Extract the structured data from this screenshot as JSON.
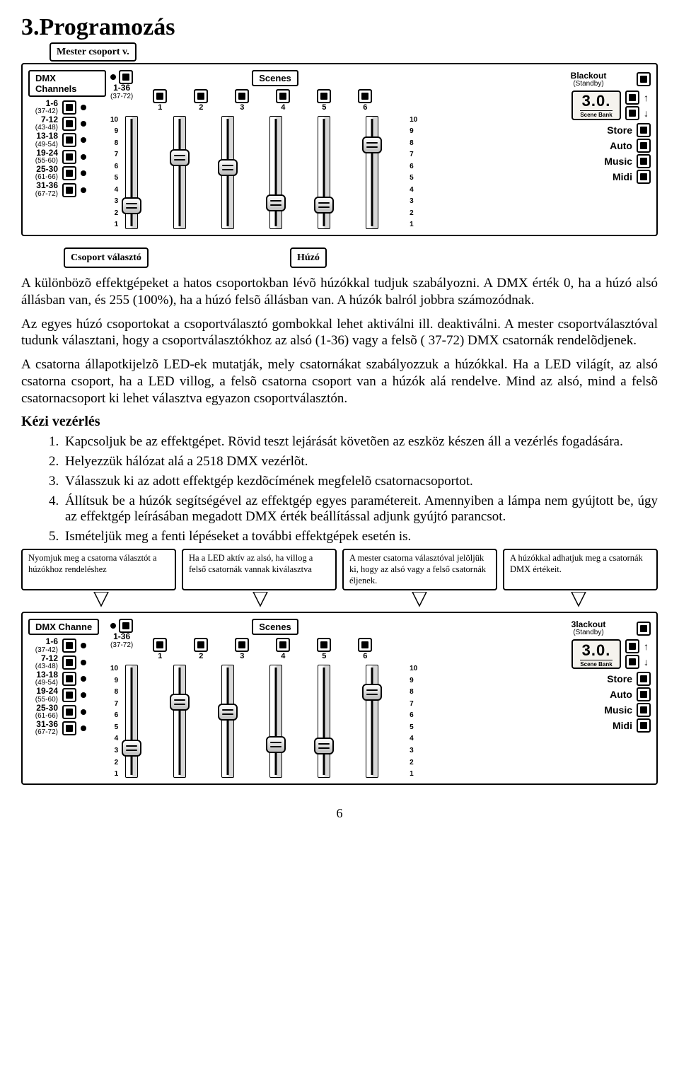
{
  "title": "3.Programozás",
  "callouts_top": {
    "master": "Mester csoport v.",
    "group_select": "Csoport választó",
    "fader": "Húzó"
  },
  "panel": {
    "dmx_label": "DMX Channels",
    "scenes_label": "Scenes",
    "master_range": "1-36",
    "master_sub": "(37-72)",
    "scene_numbers": [
      "1",
      "2",
      "3",
      "4",
      "5",
      "6"
    ],
    "groups": [
      {
        "range": "1-6",
        "sub": "(37-42)"
      },
      {
        "range": "7-12",
        "sub": "(43-48)"
      },
      {
        "range": "13-18",
        "sub": "(49-54)"
      },
      {
        "range": "19-24",
        "sub": "(55-60)"
      },
      {
        "range": "25-30",
        "sub": "(61-66)"
      },
      {
        "range": "31-36",
        "sub": "(67-72)"
      }
    ],
    "scale": [
      "10",
      "9",
      "8",
      "7",
      "6",
      "5",
      "4",
      "3",
      "2",
      "1"
    ],
    "fader_positions_pct": [
      85,
      35,
      45,
      82,
      84,
      22
    ],
    "blackout": "Blackout",
    "standby": "(Standby)",
    "display_value": "3.0.",
    "display_sub": "Scene Bank",
    "right_buttons": [
      "Store",
      "Auto",
      "Music",
      "Midi"
    ]
  },
  "paragraphs": {
    "p1": "A különbözõ effektgépeket a hatos csoportokban lévõ húzókkal tudjuk szabályozni. A DMX érték 0, ha a húzó alsó állásban van, és 255 (100%), ha a húzó felsõ állásban van. A húzók balról jobbra számozódnak.",
    "p2": "Az egyes húzó csoportokat a csoportválasztó gombokkal lehet aktiválni  ill. deaktiválni. A mester csoportválasztóval tudunk választani, hogy a  csoportválasztókhoz az  alsó (1-36)  vagy a felsõ ( 37-72) DMX csatornák rendelõdjenek.",
    "p3": "A csatorna állapotkijelzõ LED-ek mutatják, mely csatornákat szabályozzuk a húzókkal. Ha a LED világít, az alsó csatorna csoport, ha a LED villog, a felsõ csatorna csoport van a húzók alá rendelve. Mind az alsó, mind a felsõ csatornacsoport ki lehet választva egyazon csoportválasztón."
  },
  "kezi_heading": "Kézi vezérlés",
  "steps": [
    "Kapcsoljuk be az effektgépet. Rövid teszt lejárását követõen az eszköz készen áll a vezérlés fogadására.",
    "Helyezzük hálózat alá a 2518 DMX vezérlõt.",
    "Válasszuk ki az adott effektgép kezdõcímének megfelelõ csatornacsoportot.",
    "Állítsuk be a húzók segítségével az effektgép egyes paramétereit. Amennyiben a lámpa nem gyújtott be, úgy az effektgép leírásában megadott DMX érték beállítással adjunk gyújtó parancsot.",
    "Ismételjük meg a fenti lépéseket a további effektgépek esetén is."
  ],
  "callouts_bottom": [
    "Nyomjuk meg a csatorna választót a húzókhoz rendeléshez",
    "Ha a LED aktív az alsó, ha villog a felső csatornák vannak kiválasztva",
    "A mester csatorna választóval jelöljük ki, hogy az alsó vagy a felső csatornák éljenek.",
    "A húzókkal adhatjuk meg a csatornák DMX értékeit."
  ],
  "panel2": {
    "dmx_label": "DMX Channe",
    "fader_positions_pct": [
      78,
      30,
      40,
      74,
      76,
      20
    ],
    "blackout": "3lackout"
  },
  "page_number": "6",
  "colors": {
    "text": "#000000",
    "bg": "#ffffff",
    "panel_border": "#000000"
  }
}
